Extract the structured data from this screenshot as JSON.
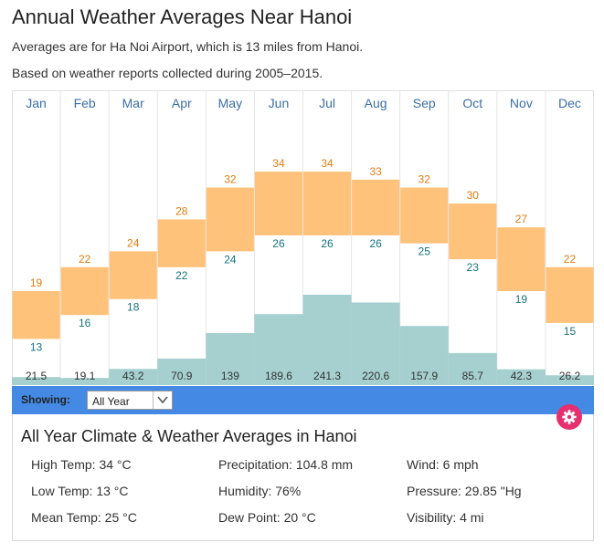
{
  "page": {
    "title": "Annual Weather Averages Near Hanoi",
    "subtitle1": "Averages are for Ha Noi Airport, which is 13 miles from Hanoi.",
    "subtitle2": "Based on weather reports collected during 2005–2015."
  },
  "colors": {
    "temp_bar": "#ffc27a",
    "high_label": "#e07b10",
    "low_label": "#17737f",
    "precip_bar": "#a6d0d0",
    "month_label": "#3a6ea5",
    "control_bar": "#448ae5",
    "gear": "#e52f6e"
  },
  "chart_data": {
    "type": "bar",
    "categories": [
      "Jan",
      "Feb",
      "Mar",
      "Apr",
      "May",
      "Jun",
      "Jul",
      "Aug",
      "Sep",
      "Oct",
      "Nov",
      "Dec"
    ],
    "series": [
      {
        "name": "High Temp (°C)",
        "values": [
          19,
          22,
          24,
          28,
          32,
          34,
          34,
          33,
          32,
          30,
          27,
          22
        ]
      },
      {
        "name": "Low Temp (°C)",
        "values": [
          13,
          16,
          18,
          22,
          24,
          26,
          26,
          26,
          25,
          23,
          19,
          15
        ]
      },
      {
        "name": "Precipitation",
        "values": [
          "21.5",
          "19.1",
          "43.2",
          "70.9",
          "139",
          "189.6",
          "241.3",
          "220.6",
          "157.9",
          "85.7",
          "42.3",
          "26.2"
        ]
      }
    ],
    "temp_range": [
      8,
      41
    ],
    "precip_range": [
      0,
      241.3
    ]
  },
  "controls": {
    "showing_label": "Showing:",
    "selected": "All Year"
  },
  "summary": {
    "title": "All Year Climate & Weather Averages in Hanoi",
    "items": [
      "High Temp: 34 °C",
      "Low Temp: 13 °C",
      "Mean Temp: 25 °C",
      "Precipitation: 104.8 mm",
      "Humidity: 76%",
      "Dew Point: 20 °C",
      "Wind: 6 mph",
      "Pressure: 29.85 \"Hg",
      "Visibility: 4 mi"
    ]
  }
}
